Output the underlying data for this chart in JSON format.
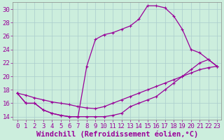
{
  "xlabel": "Windchill (Refroidissement éolien,°C)",
  "background_color": "#cceedd",
  "line_color": "#990099",
  "xlim": [
    -0.5,
    23.5
  ],
  "ylim": [
    13.5,
    31.0
  ],
  "yticks": [
    14,
    16,
    18,
    20,
    22,
    24,
    26,
    28,
    30
  ],
  "xticks": [
    0,
    1,
    2,
    3,
    4,
    5,
    6,
    7,
    8,
    9,
    10,
    11,
    12,
    13,
    14,
    15,
    16,
    17,
    18,
    19,
    20,
    21,
    22,
    23
  ],
  "line1_x": [
    0,
    1,
    2,
    3,
    4,
    5,
    6,
    7,
    8,
    9,
    10,
    11,
    12,
    13,
    14,
    15,
    16,
    17,
    18,
    19,
    20,
    21,
    22,
    23
  ],
  "line1_y": [
    17.5,
    17.2,
    16.8,
    16.5,
    16.2,
    16.0,
    15.8,
    15.5,
    15.3,
    15.2,
    15.5,
    16.0,
    16.5,
    17.0,
    17.5,
    18.0,
    18.5,
    19.0,
    19.5,
    20.0,
    20.5,
    21.0,
    21.3,
    21.5
  ],
  "line2_x": [
    0,
    1,
    2,
    3,
    4,
    5,
    6,
    7,
    8,
    9,
    10,
    11,
    12,
    13,
    14,
    15,
    16,
    17,
    18,
    19,
    20,
    21,
    22,
    23
  ],
  "line2_y": [
    17.5,
    16.0,
    16.0,
    15.0,
    14.5,
    14.2,
    14.0,
    14.0,
    14.0,
    14.0,
    14.0,
    14.2,
    14.5,
    15.5,
    16.0,
    16.5,
    17.0,
    18.0,
    19.0,
    20.0,
    21.0,
    22.0,
    22.5,
    21.5
  ],
  "line3_x": [
    0,
    1,
    2,
    3,
    4,
    5,
    6,
    7,
    8,
    9,
    10,
    11,
    12,
    13,
    14,
    15,
    16,
    17,
    18,
    19,
    20,
    21,
    22,
    23
  ],
  "line3_y": [
    17.5,
    16.0,
    16.0,
    15.0,
    14.5,
    14.2,
    14.0,
    14.0,
    21.5,
    25.5,
    26.2,
    26.5,
    27.0,
    27.5,
    28.5,
    30.5,
    30.5,
    30.2,
    29.0,
    27.0,
    24.0,
    23.5,
    22.5,
    21.5
  ],
  "grid_color": "#aacccc",
  "tick_fontsize": 6.5,
  "xlabel_fontsize": 7.5
}
